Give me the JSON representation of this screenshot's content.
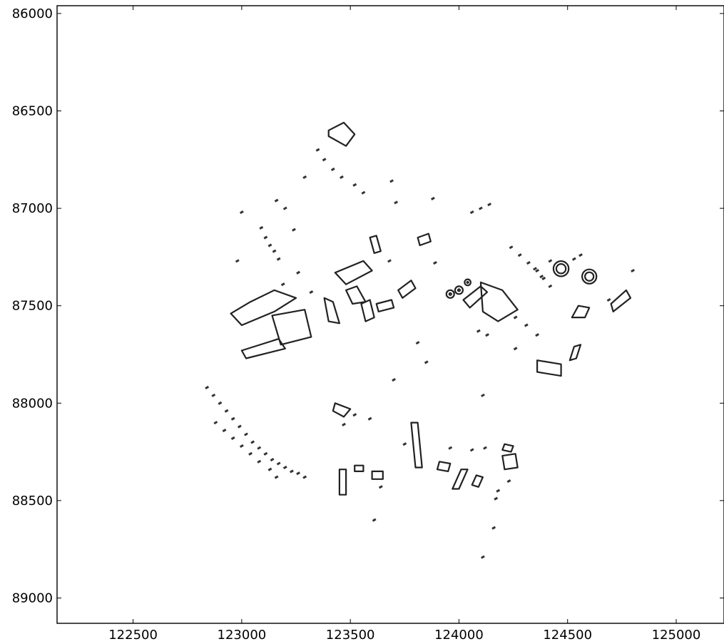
{
  "chart_data": {
    "type": "scatter",
    "title": "",
    "xlabel": "",
    "ylabel": "",
    "xlim": [
      122150,
      125220
    ],
    "ylim": [
      89130,
      85960
    ],
    "y_axis_inverted": true,
    "grid": false,
    "legend": "none",
    "x_ticks": [
      122500,
      123000,
      123500,
      124000,
      124500,
      125000
    ],
    "x_tick_labels": [
      "122500",
      "123000",
      "123500",
      "124000",
      "124500",
      "125000"
    ],
    "y_ticks": [
      86000,
      86500,
      87000,
      87500,
      88000,
      88500,
      89000
    ],
    "y_tick_labels": [
      "86000",
      "86500",
      "87000",
      "87500",
      "88000",
      "88500",
      "89000"
    ],
    "colors": {
      "outline": "#222222",
      "background": "#ffffff"
    },
    "series": [
      {
        "shape": "polygons",
        "features": [
          [
            [
              123040,
              87480
            ],
            [
              123150,
              87420
            ],
            [
              123250,
              87460
            ],
            [
              123150,
              87530
            ],
            [
              123000,
              87600
            ],
            [
              122950,
              87540
            ]
          ],
          [
            [
              123140,
              87550
            ],
            [
              123290,
              87520
            ],
            [
              123320,
              87660
            ],
            [
              123180,
              87700
            ]
          ],
          [
            [
              123000,
              87730
            ],
            [
              123170,
              87670
            ],
            [
              123200,
              87720
            ],
            [
              123020,
              87770
            ]
          ],
          [
            [
              123380,
              87460
            ],
            [
              123420,
              87480
            ],
            [
              123450,
              87590
            ],
            [
              123400,
              87580
            ]
          ],
          [
            [
              123430,
              87330
            ],
            [
              123560,
              87270
            ],
            [
              123600,
              87320
            ],
            [
              123480,
              87390
            ]
          ],
          [
            [
              123480,
              87420
            ],
            [
              123530,
              87400
            ],
            [
              123570,
              87480
            ],
            [
              123510,
              87490
            ]
          ],
          [
            [
              123550,
              87490
            ],
            [
              123590,
              87470
            ],
            [
              123610,
              87560
            ],
            [
              123570,
              87580
            ]
          ],
          [
            [
              123620,
              87490
            ],
            [
              123690,
              87470
            ],
            [
              123700,
              87510
            ],
            [
              123630,
              87530
            ]
          ],
          [
            [
              123720,
              87420
            ],
            [
              123780,
              87370
            ],
            [
              123800,
              87410
            ],
            [
              123740,
              87460
            ]
          ],
          [
            [
              123400,
              86600
            ],
            [
              123470,
              86560
            ],
            [
              123520,
              86620
            ],
            [
              123480,
              86680
            ],
            [
              123400,
              86630
            ]
          ],
          [
            [
              123780,
              88100
            ],
            [
              123810,
              88100
            ],
            [
              123830,
              88330
            ],
            [
              123800,
              88330
            ]
          ],
          [
            [
              124100,
              87380
            ],
            [
              124200,
              87420
            ],
            [
              124270,
              87520
            ],
            [
              124180,
              87580
            ],
            [
              124110,
              87530
            ]
          ],
          [
            [
              124020,
              87470
            ],
            [
              124100,
              87400
            ],
            [
              124130,
              87430
            ],
            [
              124050,
              87510
            ]
          ],
          [
            [
              124700,
              87490
            ],
            [
              124770,
              87420
            ],
            [
              124790,
              87460
            ],
            [
              124710,
              87530
            ]
          ],
          [
            [
              124360,
              87780
            ],
            [
              124470,
              87800
            ],
            [
              124470,
              87860
            ],
            [
              124360,
              87840
            ]
          ],
          [
            [
              124550,
              87500
            ],
            [
              124600,
              87510
            ],
            [
              124580,
              87560
            ],
            [
              124520,
              87560
            ]
          ],
          [
            [
              124530,
              87710
            ],
            [
              124560,
              87700
            ],
            [
              124540,
              87770
            ],
            [
              124510,
              87780
            ]
          ],
          [
            [
              123430,
              88000
            ],
            [
              123500,
              88030
            ],
            [
              123470,
              88070
            ],
            [
              123420,
              88040
            ]
          ],
          [
            [
              123600,
              88350
            ],
            [
              123650,
              88350
            ],
            [
              123650,
              88390
            ],
            [
              123600,
              88390
            ]
          ],
          [
            [
              123520,
              88320
            ],
            [
              123560,
              88320
            ],
            [
              123560,
              88350
            ],
            [
              123520,
              88350
            ]
          ],
          [
            [
              123450,
              88340
            ],
            [
              123480,
              88340
            ],
            [
              123480,
              88470
            ],
            [
              123450,
              88470
            ]
          ],
          [
            [
              123910,
              88300
            ],
            [
              123960,
              88310
            ],
            [
              123950,
              88350
            ],
            [
              123900,
              88340
            ]
          ],
          [
            [
              124010,
              88340
            ],
            [
              124040,
              88340
            ],
            [
              124000,
              88440
            ],
            [
              123970,
              88440
            ]
          ],
          [
            [
              124080,
              88370
            ],
            [
              124110,
              88380
            ],
            [
              124090,
              88430
            ],
            [
              124060,
              88420
            ]
          ],
          [
            [
              124200,
              88270
            ],
            [
              124260,
              88260
            ],
            [
              124270,
              88330
            ],
            [
              124210,
              88340
            ]
          ],
          [
            [
              124210,
              88210
            ],
            [
              124250,
              88220
            ],
            [
              124240,
              88250
            ],
            [
              124200,
              88240
            ]
          ],
          [
            [
              123810,
              87150
            ],
            [
              123860,
              87130
            ],
            [
              123870,
              87170
            ],
            [
              123820,
              87190
            ]
          ],
          [
            [
              123590,
              87150
            ],
            [
              123620,
              87140
            ],
            [
              123640,
              87220
            ],
            [
              123610,
              87230
            ]
          ]
        ]
      },
      {
        "shape": "rings",
        "features": [
          [
            124470,
            87310,
            35
          ],
          [
            124600,
            87350,
            33
          ],
          [
            124000,
            87420,
            18
          ],
          [
            123960,
            87440,
            18
          ],
          [
            124040,
            87380,
            14
          ]
        ]
      },
      {
        "shape": "points",
        "features": [
          [
            122840,
            87920
          ],
          [
            122870,
            87960
          ],
          [
            122900,
            88000
          ],
          [
            122930,
            88040
          ],
          [
            122960,
            88080
          ],
          [
            122990,
            88120
          ],
          [
            123020,
            88160
          ],
          [
            123050,
            88200
          ],
          [
            123080,
            88230
          ],
          [
            123110,
            88260
          ],
          [
            123140,
            88290
          ],
          [
            123170,
            88310
          ],
          [
            123200,
            88330
          ],
          [
            123230,
            88350
          ],
          [
            123260,
            88360
          ],
          [
            123290,
            88380
          ],
          [
            122880,
            88100
          ],
          [
            122920,
            88140
          ],
          [
            122960,
            88180
          ],
          [
            123000,
            88220
          ],
          [
            123040,
            88260
          ],
          [
            123080,
            88300
          ],
          [
            123130,
            88340
          ],
          [
            123160,
            88380
          ],
          [
            123090,
            87100
          ],
          [
            123110,
            87150
          ],
          [
            123130,
            87190
          ],
          [
            123150,
            87220
          ],
          [
            123170,
            87260
          ],
          [
            123350,
            86700
          ],
          [
            123380,
            86750
          ],
          [
            123420,
            86800
          ],
          [
            123460,
            86840
          ],
          [
            123520,
            86880
          ],
          [
            123560,
            86920
          ],
          [
            123690,
            86860
          ],
          [
            123710,
            86970
          ],
          [
            123880,
            86950
          ],
          [
            124060,
            87020
          ],
          [
            124100,
            87000
          ],
          [
            124140,
            86980
          ],
          [
            124240,
            87200
          ],
          [
            124280,
            87240
          ],
          [
            124320,
            87280
          ],
          [
            124360,
            87320
          ],
          [
            124390,
            87360
          ],
          [
            124420,
            87400
          ],
          [
            124260,
            87560
          ],
          [
            124310,
            87600
          ],
          [
            124360,
            87650
          ],
          [
            124260,
            87720
          ],
          [
            124110,
            87960
          ],
          [
            123960,
            88230
          ],
          [
            124060,
            88240
          ],
          [
            124120,
            88230
          ],
          [
            124230,
            88400
          ],
          [
            124180,
            88450
          ],
          [
            124170,
            88490
          ],
          [
            123610,
            88600
          ],
          [
            124110,
            88790
          ],
          [
            124160,
            88640
          ],
          [
            123700,
            87880
          ],
          [
            123750,
            88210
          ],
          [
            123640,
            88430
          ],
          [
            123810,
            87690
          ],
          [
            123850,
            87790
          ],
          [
            123680,
            87270
          ],
          [
            123890,
            87280
          ],
          [
            123320,
            87430
          ],
          [
            123190,
            87390
          ],
          [
            123260,
            87330
          ],
          [
            122980,
            87270
          ],
          [
            123000,
            87020
          ],
          [
            123200,
            87000
          ],
          [
            123160,
            86960
          ],
          [
            123290,
            86840
          ],
          [
            123240,
            87110
          ],
          [
            124530,
            87260
          ],
          [
            124560,
            87240
          ],
          [
            124350,
            87310
          ],
          [
            124380,
            87350
          ],
          [
            124420,
            87270
          ],
          [
            124800,
            87320
          ],
          [
            124690,
            87470
          ],
          [
            124130,
            87650
          ],
          [
            124090,
            87630
          ],
          [
            123590,
            88080
          ],
          [
            123520,
            88060
          ],
          [
            123470,
            88110
          ]
        ]
      }
    ]
  }
}
